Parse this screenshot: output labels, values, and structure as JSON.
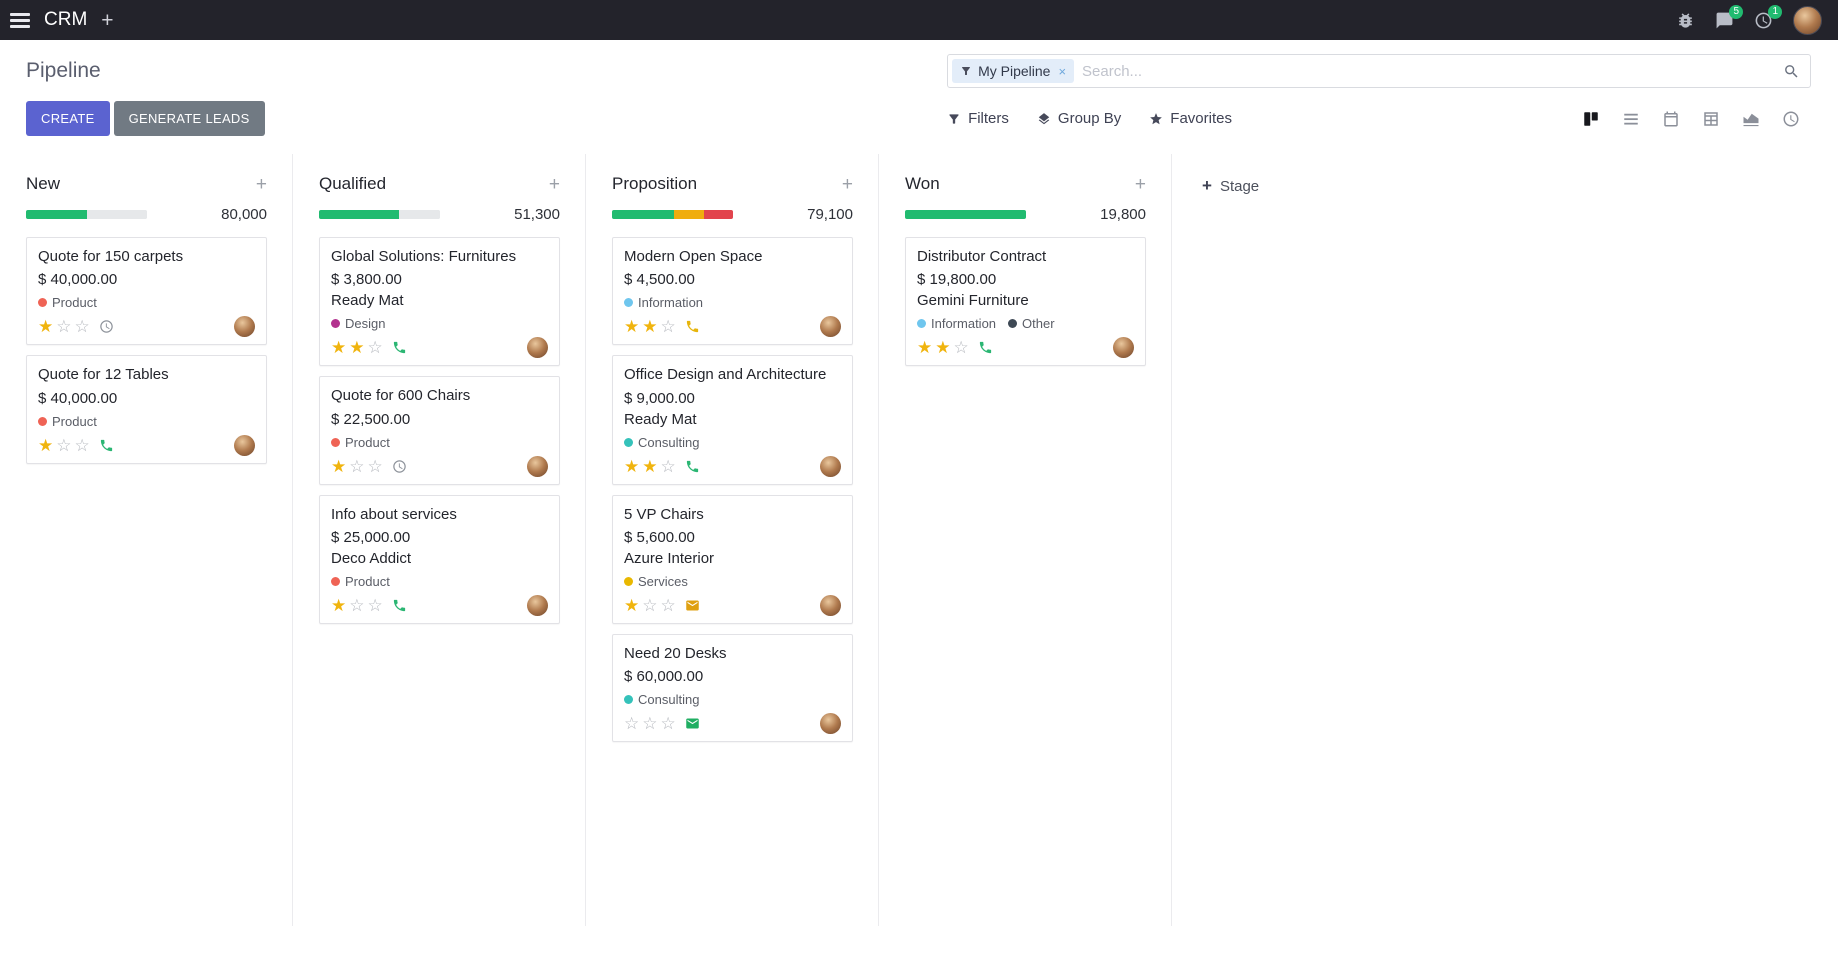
{
  "theme": {
    "accent": "#5b63d0",
    "topbar_bg": "#23232b",
    "success": "#21bb70"
  },
  "topbar": {
    "app_name": "CRM",
    "messages_badge": "5",
    "activities_badge": "1"
  },
  "control_panel": {
    "breadcrumb": "Pipeline",
    "create_label": "CREATE",
    "generate_leads_label": "GENERATE LEADS",
    "filters_label": "Filters",
    "group_by_label": "Group By",
    "favorites_label": "Favorites",
    "search_facet": "My Pipeline",
    "remove_facet_label": "×",
    "search_placeholder": "Search..."
  },
  "board": {
    "add_stage_label": "Stage",
    "columns": [
      {
        "title": "New",
        "counter": "80,000",
        "progress": [
          {
            "status": "success",
            "color": "#21bb70",
            "pct": 50
          },
          {
            "status": "muted",
            "color": "#e6e8ea",
            "pct": 50
          }
        ],
        "cards": [
          {
            "title": "Quote for 150 carpets",
            "amount": "$ 40,000.00",
            "tags": [
              {
                "label": "Product",
                "color": "#ef6355"
              }
            ],
            "stars": 1,
            "activity": {
              "type": "clock",
              "color": "#8e939b"
            }
          },
          {
            "title": "Quote for 12 Tables",
            "amount": "$ 40,000.00",
            "tags": [
              {
                "label": "Product",
                "color": "#ef6355"
              }
            ],
            "stars": 1,
            "activity": {
              "type": "phone",
              "color": "#2bb673"
            }
          }
        ]
      },
      {
        "title": "Qualified",
        "counter": "51,300",
        "progress": [
          {
            "status": "success",
            "color": "#21bb70",
            "pct": 66
          },
          {
            "status": "muted",
            "color": "#e6e8ea",
            "pct": 34
          }
        ],
        "cards": [
          {
            "title": "Global Solutions: Furnitures",
            "amount": "$ 3,800.00",
            "partner": "Ready Mat",
            "tags": [
              {
                "label": "Design",
                "color": "#b3328f"
              }
            ],
            "stars": 2,
            "activity": {
              "type": "phone",
              "color": "#2bb673"
            }
          },
          {
            "title": "Quote for 600 Chairs",
            "amount": "$ 22,500.00",
            "tags": [
              {
                "label": "Product",
                "color": "#ef6355"
              }
            ],
            "stars": 1,
            "activity": {
              "type": "clock",
              "color": "#8e939b"
            }
          },
          {
            "title": "Info about services",
            "amount": "$ 25,000.00",
            "partner": "Deco Addict",
            "tags": [
              {
                "label": "Product",
                "color": "#ef6355"
              }
            ],
            "stars": 1,
            "activity": {
              "type": "phone",
              "color": "#2bb673"
            }
          }
        ]
      },
      {
        "title": "Proposition",
        "counter": "79,100",
        "progress": [
          {
            "status": "success",
            "color": "#21bb70",
            "pct": 51
          },
          {
            "status": "warning",
            "color": "#f0ad0e",
            "pct": 25
          },
          {
            "status": "danger",
            "color": "#e2444d",
            "pct": 24
          }
        ],
        "cards": [
          {
            "title": "Modern Open Space",
            "amount": "$ 4,500.00",
            "tags": [
              {
                "label": "Information",
                "color": "#6fc6ee"
              }
            ],
            "stars": 2,
            "activity": {
              "type": "phone",
              "color": "#e7b50c"
            }
          },
          {
            "title": "Office Design and Architecture",
            "amount": "$ 9,000.00",
            "partner": "Ready Mat",
            "tags": [
              {
                "label": "Consulting",
                "color": "#35c2ba"
              }
            ],
            "stars": 2,
            "activity": {
              "type": "phone",
              "color": "#2bb673"
            }
          },
          {
            "title": "5 VP Chairs",
            "amount": "$ 5,600.00",
            "partner": "Azure Interior",
            "tags": [
              {
                "label": "Services",
                "color": "#e9b800"
              }
            ],
            "stars": 1,
            "activity": {
              "type": "envelope",
              "color": "#dfa010"
            }
          },
          {
            "title": "Need 20 Desks",
            "amount": "$ 60,000.00",
            "tags": [
              {
                "label": "Consulting",
                "color": "#35c2ba"
              }
            ],
            "stars": 0,
            "activity": {
              "type": "envelope",
              "color": "#1fae62"
            }
          }
        ]
      },
      {
        "title": "Won",
        "counter": "19,800",
        "progress": [
          {
            "status": "success",
            "color": "#21bb70",
            "pct": 100
          }
        ],
        "cards": [
          {
            "title": "Distributor Contract",
            "amount": "$ 19,800.00",
            "partner": "Gemini Furniture",
            "tags": [
              {
                "label": "Information",
                "color": "#6fc6ee"
              },
              {
                "label": "Other",
                "color": "#3e4955"
              }
            ],
            "stars": 2,
            "activity": {
              "type": "phone",
              "color": "#2bb673"
            }
          }
        ]
      }
    ]
  }
}
